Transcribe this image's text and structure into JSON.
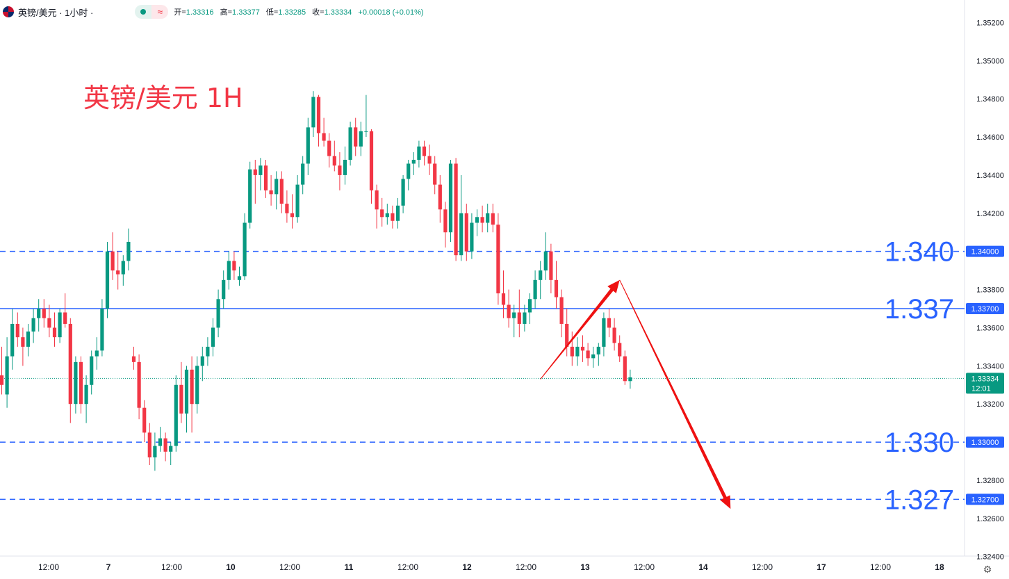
{
  "header": {
    "symbol": "英镑/美元 · 1小时 ·",
    "ohlc": [
      {
        "k": "开=",
        "v": "1.33316"
      },
      {
        "k": "高=",
        "v": "1.33377"
      },
      {
        "k": "低=",
        "v": "1.33285"
      },
      {
        "k": "收=",
        "v": "1.33334"
      },
      {
        "k": "",
        "v": "+0.00018 (+0.01%)"
      }
    ]
  },
  "chart_data": {
    "type": "candlestick",
    "title": "英镑/美元 1H",
    "ylim": [
      1.324,
      1.352
    ],
    "y_ticks": [
      "1.35200",
      "1.35000",
      "1.34800",
      "1.34600",
      "1.34400",
      "1.34200",
      "1.33800",
      "1.33600",
      "1.33400",
      "1.33200",
      "1.32800",
      "1.32600",
      "1.32400"
    ],
    "x_ticks": [
      "12:00",
      "7",
      "12:00",
      "10",
      "12:00",
      "11",
      "12:00",
      "12",
      "12:00",
      "13",
      "12:00",
      "14",
      "12:00",
      "17",
      "12:00",
      "18"
    ],
    "levels": [
      {
        "value": 1.34,
        "label": "1.340",
        "tag": "1.34000",
        "style": "dashed"
      },
      {
        "value": 1.337,
        "label": "1.337",
        "tag": "1.33700",
        "style": "solid"
      },
      {
        "value": 1.33,
        "label": "1.330",
        "tag": "1.33000",
        "style": "dashed"
      },
      {
        "value": 1.327,
        "label": "1.327",
        "tag": "1.32700",
        "style": "dashed"
      }
    ],
    "last_price": {
      "value": 1.33334,
      "label": "1.33334",
      "timer": "12:01"
    },
    "forecast_path": [
      {
        "bar": 102,
        "price": 1.3333
      },
      {
        "bar": 117,
        "price": 1.3385
      },
      {
        "bar": 138,
        "price": 1.3265
      }
    ],
    "candles": [
      [
        1.3335,
        1.335,
        1.3325,
        1.333
      ],
      [
        1.3325,
        1.3355,
        1.3318,
        1.3345
      ],
      [
        1.3345,
        1.337,
        1.3338,
        1.3362
      ],
      [
        1.3362,
        1.3368,
        1.335,
        1.3355
      ],
      [
        1.3355,
        1.336,
        1.334,
        1.335
      ],
      [
        1.335,
        1.3362,
        1.3345,
        1.3358
      ],
      [
        1.3358,
        1.337,
        1.3352,
        1.3365
      ],
      [
        1.3365,
        1.3375,
        1.3358,
        1.337
      ],
      [
        1.337,
        1.3375,
        1.336,
        1.3365
      ],
      [
        1.3365,
        1.3372,
        1.3355,
        1.336
      ],
      [
        1.336,
        1.3368,
        1.335,
        1.3355
      ],
      [
        1.3355,
        1.337,
        1.3352,
        1.3368
      ],
      [
        1.3368,
        1.3378,
        1.336,
        1.3362
      ],
      [
        1.3362,
        1.3365,
        1.331,
        1.332
      ],
      [
        1.332,
        1.3345,
        1.3315,
        1.3342
      ],
      [
        1.3342,
        1.3345,
        1.3315,
        1.332
      ],
      [
        1.332,
        1.3335,
        1.331,
        1.333
      ],
      [
        1.333,
        1.3348,
        1.3325,
        1.3345
      ],
      [
        1.3345,
        1.3355,
        1.3338,
        1.3348
      ],
      [
        1.3348,
        1.3375,
        1.3345,
        1.337
      ],
      [
        1.337,
        1.3405,
        1.3365,
        1.34
      ],
      [
        1.34,
        1.341,
        1.3385,
        1.339
      ],
      [
        1.339,
        1.34,
        1.338,
        1.3388
      ],
      [
        1.3388,
        1.3398,
        1.3382,
        1.3395
      ],
      [
        1.3395,
        1.3412,
        1.339,
        1.3405
      ],
      [
        1.3345,
        1.335,
        1.3338,
        1.3342
      ],
      [
        1.3342,
        1.3346,
        1.3312,
        1.3318
      ],
      [
        1.3318,
        1.3322,
        1.33,
        1.3305
      ],
      [
        1.3305,
        1.331,
        1.3288,
        1.3292
      ],
      [
        1.3292,
        1.3305,
        1.3285,
        1.3298
      ],
      [
        1.3298,
        1.3308,
        1.3295,
        1.3302
      ],
      [
        1.3302,
        1.3305,
        1.329,
        1.3295
      ],
      [
        1.3295,
        1.33,
        1.3288,
        1.3298
      ],
      [
        1.3298,
        1.3335,
        1.3295,
        1.333
      ],
      [
        1.333,
        1.3342,
        1.331,
        1.3315
      ],
      [
        1.3315,
        1.334,
        1.3305,
        1.3338
      ],
      [
        1.3338,
        1.3345,
        1.3305,
        1.332
      ],
      [
        1.332,
        1.3345,
        1.3315,
        1.334
      ],
      [
        1.334,
        1.335,
        1.3332,
        1.3345
      ],
      [
        1.3345,
        1.3355,
        1.334,
        1.335
      ],
      [
        1.335,
        1.3365,
        1.3345,
        1.336
      ],
      [
        1.336,
        1.338,
        1.3355,
        1.3375
      ],
      [
        1.3375,
        1.339,
        1.337,
        1.3385
      ],
      [
        1.3385,
        1.34,
        1.338,
        1.3395
      ],
      [
        1.3395,
        1.34,
        1.3385,
        1.339
      ],
      [
        1.3385,
        1.3392,
        1.3382,
        1.3387
      ],
      [
        1.3387,
        1.342,
        1.3385,
        1.3415
      ],
      [
        1.3415,
        1.3447,
        1.3412,
        1.3443
      ],
      [
        1.3443,
        1.3448,
        1.3425,
        1.344
      ],
      [
        1.344,
        1.3449,
        1.3432,
        1.3445
      ],
      [
        1.3445,
        1.3448,
        1.3428,
        1.3432
      ],
      [
        1.3432,
        1.344,
        1.3424,
        1.343
      ],
      [
        1.343,
        1.3442,
        1.3422,
        1.3438
      ],
      [
        1.3438,
        1.3442,
        1.342,
        1.3425
      ],
      [
        1.3425,
        1.3432,
        1.3415,
        1.342
      ],
      [
        1.342,
        1.343,
        1.3412,
        1.3418
      ],
      [
        1.3418,
        1.344,
        1.3415,
        1.3435
      ],
      [
        1.3435,
        1.345,
        1.343,
        1.3446
      ],
      [
        1.3446,
        1.347,
        1.344,
        1.3465
      ],
      [
        1.3465,
        1.3484,
        1.346,
        1.3481
      ],
      [
        1.3481,
        1.3482,
        1.3455,
        1.3462
      ],
      [
        1.3462,
        1.347,
        1.3455,
        1.3458
      ],
      [
        1.3458,
        1.3462,
        1.3444,
        1.345
      ],
      [
        1.345,
        1.3458,
        1.3442,
        1.3445
      ],
      [
        1.3445,
        1.3452,
        1.3432,
        1.344
      ],
      [
        1.344,
        1.3455,
        1.3435,
        1.3448
      ],
      [
        1.3448,
        1.3468,
        1.3445,
        1.3465
      ],
      [
        1.3465,
        1.347,
        1.345,
        1.3455
      ],
      [
        1.3455,
        1.3468,
        1.345,
        1.3463
      ],
      [
        1.3463,
        1.3482,
        1.346,
        1.3463
      ],
      [
        1.3463,
        1.3464,
        1.3425,
        1.3432
      ],
      [
        1.3432,
        1.3435,
        1.3412,
        1.3422
      ],
      [
        1.3422,
        1.3428,
        1.3413,
        1.3418
      ],
      [
        1.3418,
        1.3425,
        1.3414,
        1.342
      ],
      [
        1.342,
        1.3424,
        1.3412,
        1.3416
      ],
      [
        1.3416,
        1.3428,
        1.3412,
        1.3424
      ],
      [
        1.3424,
        1.344,
        1.342,
        1.3438
      ],
      [
        1.3438,
        1.3448,
        1.3432,
        1.3446
      ],
      [
        1.3446,
        1.3452,
        1.344,
        1.3448
      ],
      [
        1.3448,
        1.3458,
        1.3444,
        1.3455
      ],
      [
        1.3455,
        1.3458,
        1.3445,
        1.345
      ],
      [
        1.345,
        1.3456,
        1.344,
        1.3446
      ],
      [
        1.3446,
        1.345,
        1.343,
        1.3435
      ],
      [
        1.3435,
        1.344,
        1.3415,
        1.3422
      ],
      [
        1.3422,
        1.3426,
        1.3402,
        1.341
      ],
      [
        1.341,
        1.3448,
        1.3405,
        1.3446
      ],
      [
        1.3446,
        1.3449,
        1.3395,
        1.3398
      ],
      [
        1.3398,
        1.344,
        1.3395,
        1.342
      ],
      [
        1.342,
        1.3425,
        1.3395,
        1.34
      ],
      [
        1.34,
        1.342,
        1.3396,
        1.3415
      ],
      [
        1.3415,
        1.3422,
        1.3408,
        1.3418
      ],
      [
        1.3418,
        1.3424,
        1.341,
        1.3415
      ],
      [
        1.3415,
        1.3425,
        1.341,
        1.342
      ],
      [
        1.342,
        1.3425,
        1.341,
        1.3414
      ],
      [
        1.3414,
        1.342,
        1.3372,
        1.3378
      ],
      [
        1.3378,
        1.339,
        1.3365,
        1.3372
      ],
      [
        1.3372,
        1.338,
        1.336,
        1.3365
      ],
      [
        1.3365,
        1.3372,
        1.3355,
        1.3368
      ],
      [
        1.3368,
        1.338,
        1.3355,
        1.3362
      ],
      [
        1.3362,
        1.3372,
        1.3358,
        1.3368
      ],
      [
        1.3368,
        1.3378,
        1.3362,
        1.3375
      ],
      [
        1.3375,
        1.339,
        1.337,
        1.3385
      ],
      [
        1.3385,
        1.3395,
        1.3375,
        1.339
      ],
      [
        1.339,
        1.341,
        1.3385,
        1.34
      ],
      [
        1.34,
        1.3404,
        1.3378,
        1.3385
      ],
      [
        1.3385,
        1.3395,
        1.337,
        1.3376
      ],
      [
        1.3376,
        1.338,
        1.3355,
        1.3362
      ],
      [
        1.3362,
        1.337,
        1.3345,
        1.335
      ],
      [
        1.335,
        1.3358,
        1.334,
        1.3345
      ],
      [
        1.3345,
        1.3355,
        1.334,
        1.335
      ],
      [
        1.335,
        1.3356,
        1.3342,
        1.3348
      ],
      [
        1.3348,
        1.3352,
        1.334,
        1.3344
      ],
      [
        1.3344,
        1.335,
        1.3339,
        1.3346
      ],
      [
        1.3346,
        1.3352,
        1.334,
        1.335
      ],
      [
        1.335,
        1.3368,
        1.3345,
        1.3365
      ],
      [
        1.3365,
        1.337,
        1.3355,
        1.336
      ],
      [
        1.336,
        1.3365,
        1.3348,
        1.3352
      ],
      [
        1.3352,
        1.3356,
        1.3342,
        1.3345
      ],
      [
        1.3345,
        1.3348,
        1.333,
        1.3332
      ],
      [
        1.3332,
        1.3338,
        1.3328,
        1.3334
      ]
    ]
  },
  "colors": {
    "up": "#089981",
    "down": "#f23645",
    "level_line": "#2962ff",
    "level_label": "#2962ff",
    "title": "#f23645",
    "arrow": "#ee1111",
    "axis_text": "#131722",
    "last_price_bg": "#089981"
  }
}
